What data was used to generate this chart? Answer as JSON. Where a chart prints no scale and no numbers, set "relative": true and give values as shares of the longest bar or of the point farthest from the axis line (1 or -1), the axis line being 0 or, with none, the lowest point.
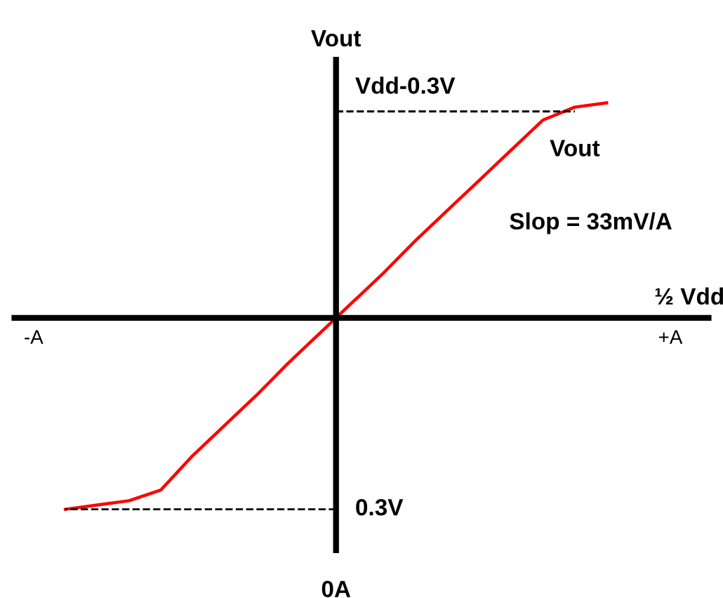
{
  "chart_data": {
    "type": "line",
    "relative": true,
    "xlabel": "½ Vdd",
    "ylabel": "Vout",
    "categories": [
      "-A",
      null,
      null,
      null,
      null,
      null,
      null,
      null,
      null,
      null,
      null,
      null,
      null,
      null,
      null,
      null,
      null,
      null,
      null,
      null,
      "+A"
    ],
    "series": [
      {
        "color": "#ff0000",
        "values": [
          null,
          -0.89,
          -0.87,
          -0.85,
          -0.8,
          -0.64,
          -0.5,
          -0.36,
          -0.21,
          -0.07,
          0.07,
          0.21,
          0.36,
          0.5,
          0.64,
          0.78,
          0.92,
          0.98,
          1,
          null,
          null
        ]
      }
    ],
    "ref_lines": [
      {
        "axis": "y",
        "value": 0.96,
        "label": "Vdd-0.3V",
        "color": "#000000",
        "line_style": "dashed"
      },
      {
        "axis": "y",
        "value": -0.89,
        "label": "0.3V",
        "color": "#000000",
        "line_style": "dashed"
      }
    ],
    "annotations": [
      "Vout",
      "Slop = 33mV/A",
      "0A"
    ],
    "grid": false,
    "legend": false,
    "marker": "none",
    "line_style": "solid"
  }
}
